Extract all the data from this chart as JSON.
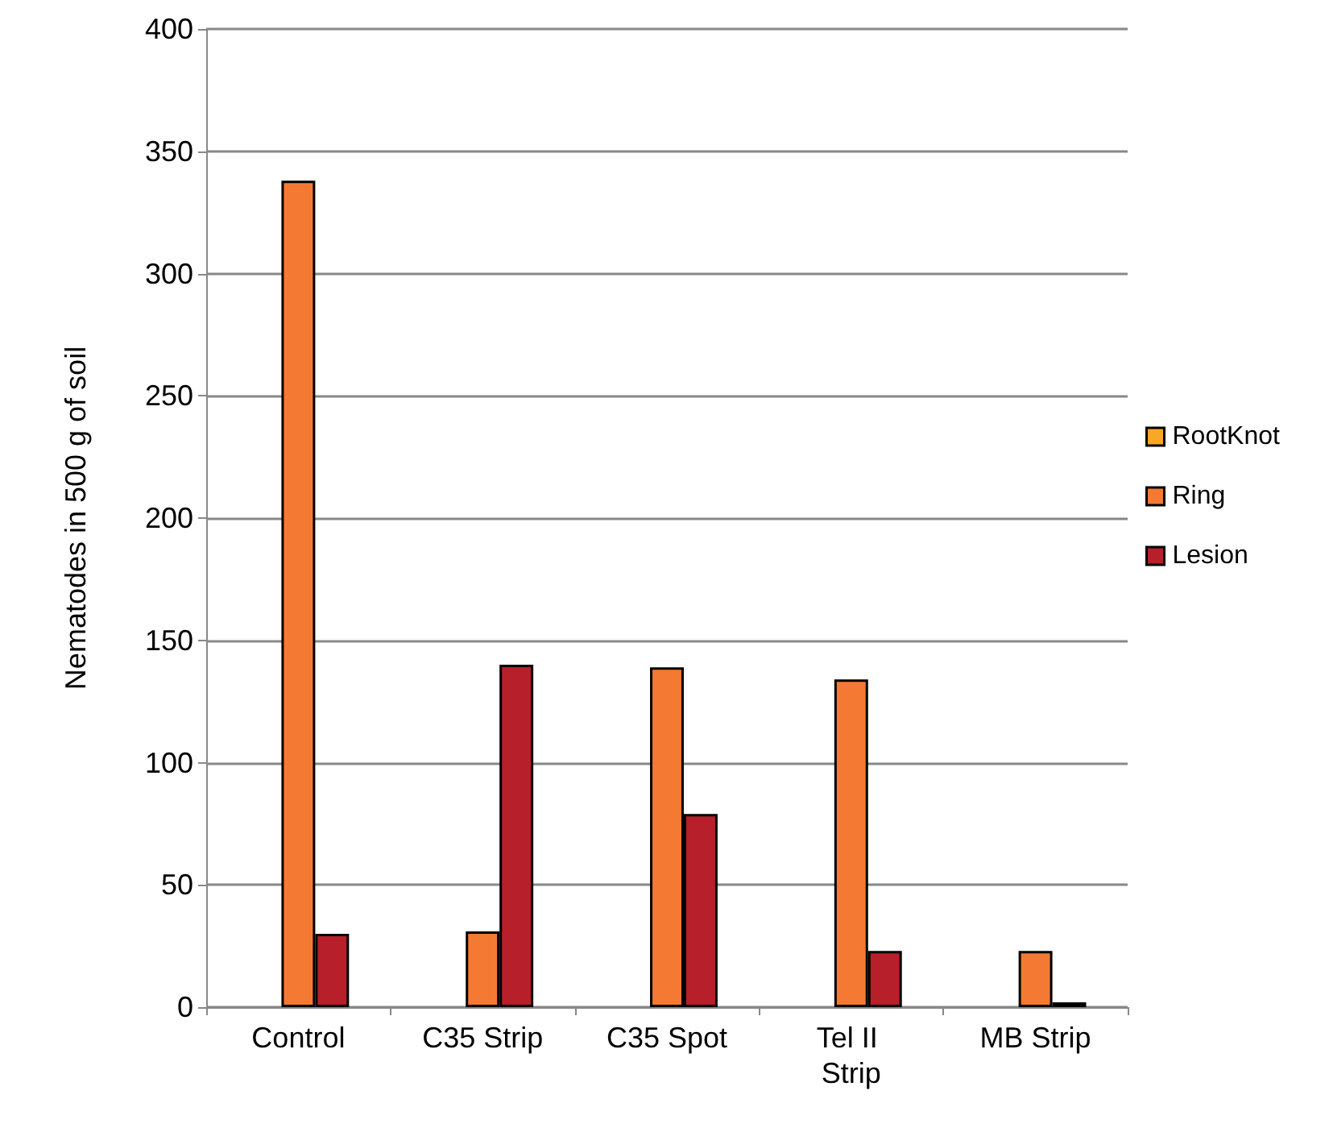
{
  "chart_data": {
    "type": "bar",
    "ylabel": "Nematodes in 500 g of soil",
    "categories": [
      "Control",
      "C35 Strip",
      "C35 Spot",
      "Tel II Strip",
      "MB Strip"
    ],
    "series": [
      {
        "name": "RootKnot",
        "color": "#f9a825",
        "values": [
          0,
          0,
          0,
          0,
          0
        ]
      },
      {
        "name": "Ring",
        "color": "#f47a33",
        "values": [
          338,
          31,
          139,
          134,
          23
        ]
      },
      {
        "name": "Lesion",
        "color": "#b71f2a",
        "values": [
          30,
          140,
          79,
          23,
          2
        ]
      }
    ],
    "ylim": [
      0,
      400
    ],
    "yticks": [
      0,
      50,
      100,
      150,
      200,
      250,
      300,
      350,
      400
    ],
    "grid": "y",
    "legend": "right"
  }
}
